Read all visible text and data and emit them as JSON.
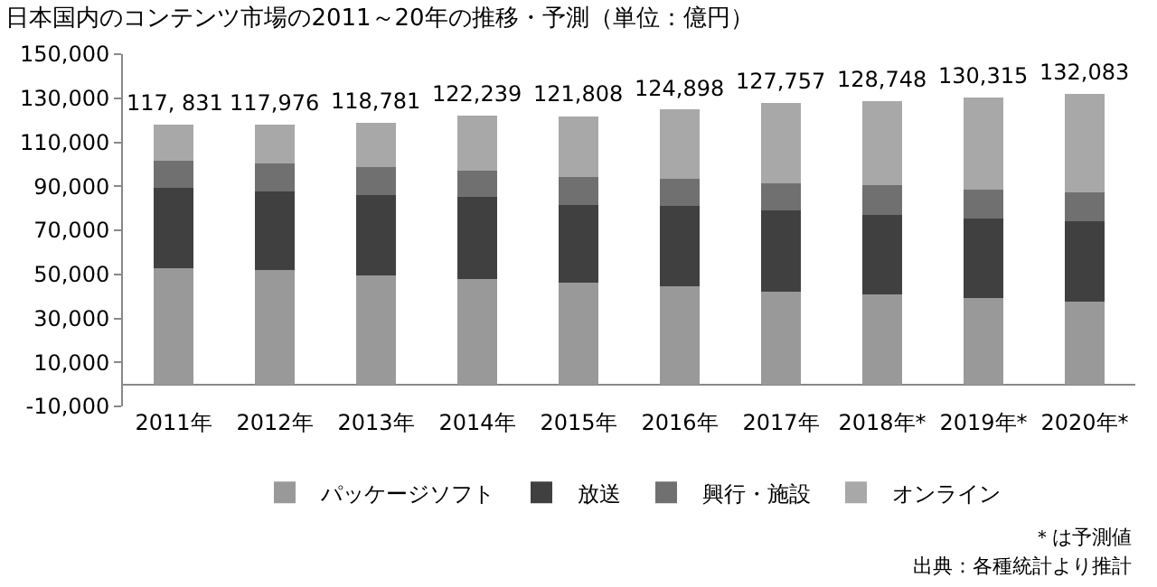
{
  "chart_data": {
    "type": "bar",
    "stacked": true,
    "title": "日本国内のコンテンツ市場の2011～20年の推移・予測（単位：億円）",
    "categories": [
      "2011年",
      "2012年",
      "2013年",
      "2014年",
      "2015年",
      "2016年",
      "2017年",
      "2018年*",
      "2019年*",
      "2020年*"
    ],
    "series": [
      {
        "name": "パッケージソフト",
        "color": "#999999",
        "values": [
          52800,
          51800,
          49400,
          48000,
          46100,
          44600,
          42200,
          40800,
          39400,
          37400
        ]
      },
      {
        "name": "放送",
        "color": "#404040",
        "values": [
          36500,
          36000,
          36800,
          37000,
          35500,
          36500,
          37000,
          36200,
          36000,
          36800
        ]
      },
      {
        "name": "興行・施設",
        "color": "#707070",
        "values": [
          12200,
          12500,
          12400,
          12000,
          12700,
          12300,
          12200,
          13500,
          12900,
          12900
        ]
      },
      {
        "name": "オンライン",
        "color": "#a8a8a8",
        "values": [
          16331,
          17676,
          20181,
          25239,
          27508,
          31498,
          36357,
          38248,
          42015,
          44983
        ]
      }
    ],
    "totals": [
      "117, 831",
      "117,976",
      "118,781",
      "122,239",
      "121,808",
      "124,898",
      "127,757",
      "128,748",
      "130,315",
      "132,083"
    ],
    "ylim": [
      -10000,
      150000
    ],
    "yticks": [
      {
        "value": -10000,
        "label": "-10,000"
      },
      {
        "value": 10000,
        "label": "10,000"
      },
      {
        "value": 30000,
        "label": "30,000"
      },
      {
        "value": 50000,
        "label": "50,000"
      },
      {
        "value": 70000,
        "label": "70,000"
      },
      {
        "value": 90000,
        "label": "90,000"
      },
      {
        "value": 110000,
        "label": "110,000"
      },
      {
        "value": 130000,
        "label": "130,000"
      },
      {
        "value": 150000,
        "label": "150,000"
      }
    ],
    "legend": "bottom",
    "annotations": [
      "＊は予測値",
      "出典：各種統計より推計"
    ]
  }
}
